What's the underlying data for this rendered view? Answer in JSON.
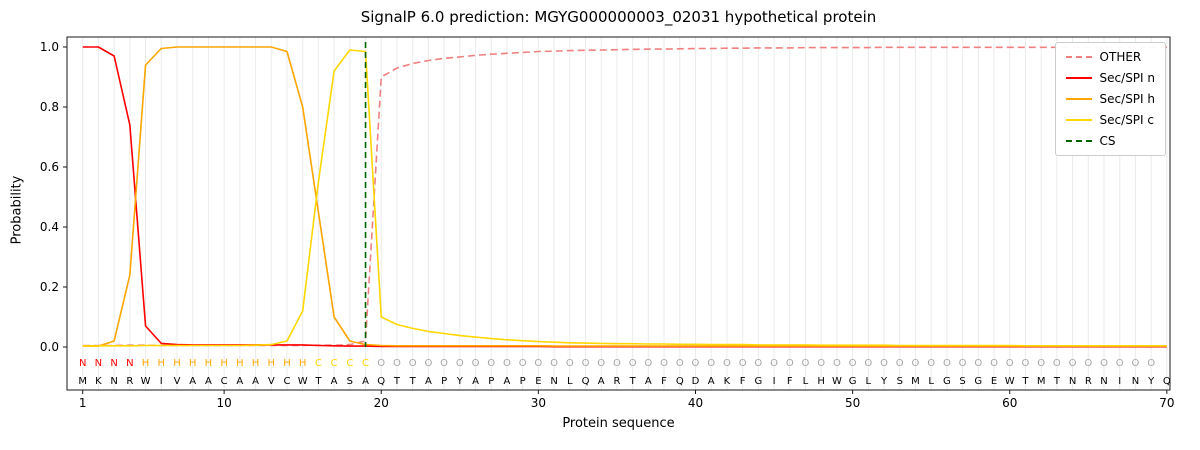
{
  "chart_data": {
    "type": "line",
    "title": "SignalP 6.0 prediction: MGYG000000003_02031 hypothetical protein",
    "xlabel": "Protein sequence",
    "ylabel": "Probability",
    "xlim": [
      0,
      70.2
    ],
    "ylim": [
      0,
      1
    ],
    "xticks": [
      1,
      10,
      20,
      30,
      40,
      50,
      60,
      70
    ],
    "yticks": [
      0.0,
      0.2,
      0.4,
      0.6,
      0.8,
      1.0
    ],
    "grid": "vertical-per-residue",
    "legend_position": "upper right",
    "sequence": "MKNRWIVAACAAVCWTASAQTTAPYAPAPENLQARTAFQDAKFGIFLHWGLYSMLGSGEWTMTNRNINYQ",
    "region_labels": "NNNNHHHHHHHHHHHCCCCOOOOOOOOOOOOOOOOOOOOOOOOOOOOOOOOOOOOOOOOOOOOOOOOOO",
    "region_colors": {
      "N": "#ff0000",
      "H": "#ffa500",
      "C": "#ffd700",
      "O": "#a6a6a6"
    },
    "series": [
      {
        "name": "OTHER",
        "color": "#f08080",
        "dash": "7,4",
        "values": [
          0.005,
          0.005,
          0.005,
          0.006,
          0.006,
          0.005,
          0.005,
          0.005,
          0.005,
          0.005,
          0.005,
          0.005,
          0.005,
          0.005,
          0.005,
          0.006,
          0.006,
          0.008,
          0.02,
          0.9,
          0.93,
          0.945,
          0.955,
          0.962,
          0.967,
          0.972,
          0.976,
          0.979,
          0.982,
          0.985,
          0.986,
          0.988,
          0.989,
          0.99,
          0.991,
          0.992,
          0.993,
          0.993,
          0.994,
          0.995,
          0.995,
          0.996,
          0.996,
          0.997,
          0.997,
          0.997,
          0.998,
          0.998,
          0.998,
          0.998,
          0.998,
          0.999,
          0.999,
          0.999,
          0.999,
          0.999,
          0.999,
          0.999,
          0.999,
          0.999,
          0.999,
          0.999,
          0.999,
          0.999,
          0.999,
          0.999,
          0.999,
          0.999,
          0.999,
          0.999
        ]
      },
      {
        "name": "Sec/SPI n",
        "color": "#ff0000",
        "dash": null,
        "values": [
          1.0,
          1.0,
          0.97,
          0.74,
          0.07,
          0.012,
          0.008,
          0.007,
          0.007,
          0.007,
          0.007,
          0.007,
          0.007,
          0.007,
          0.007,
          0.005,
          0.004,
          0.003,
          0.003,
          0.002,
          0.002,
          0.002,
          0.002,
          0.002,
          0.002,
          0.002,
          0.002,
          0.002,
          0.002,
          0.002,
          0.001,
          0.001,
          0.001,
          0.001,
          0.001,
          0.001,
          0.001,
          0.001,
          0.001,
          0.001,
          0.001,
          0.001,
          0.001,
          0.001,
          0.001,
          0.001,
          0.001,
          0.001,
          0.001,
          0.001,
          0.001,
          0.001,
          0.001,
          0.001,
          0.001,
          0.001,
          0.001,
          0.001,
          0.001,
          0.001,
          0.001,
          0.001,
          0.001,
          0.001,
          0.001,
          0.001,
          0.001,
          0.001,
          0.001,
          0.001
        ]
      },
      {
        "name": "Sec/SPI h",
        "color": "#ffa500",
        "dash": null,
        "values": [
          0.003,
          0.003,
          0.02,
          0.24,
          0.94,
          0.995,
          1.0,
          1.0,
          1.0,
          1.0,
          1.0,
          1.0,
          1.0,
          0.985,
          0.8,
          0.45,
          0.1,
          0.02,
          0.008,
          0.005,
          0.004,
          0.004,
          0.004,
          0.004,
          0.004,
          0.004,
          0.004,
          0.004,
          0.004,
          0.004,
          0.003,
          0.003,
          0.003,
          0.003,
          0.003,
          0.003,
          0.003,
          0.003,
          0.003,
          0.003,
          0.003,
          0.003,
          0.003,
          0.003,
          0.003,
          0.003,
          0.003,
          0.003,
          0.003,
          0.003,
          0.003,
          0.003,
          0.003,
          0.003,
          0.003,
          0.003,
          0.003,
          0.003,
          0.003,
          0.003,
          0.003,
          0.003,
          0.003,
          0.003,
          0.003,
          0.003,
          0.003,
          0.003,
          0.003,
          0.003
        ]
      },
      {
        "name": "Sec/SPI c",
        "color": "#ffd700",
        "dash": null,
        "values": [
          0.004,
          0.004,
          0.004,
          0.004,
          0.005,
          0.005,
          0.005,
          0.005,
          0.005,
          0.005,
          0.005,
          0.006,
          0.008,
          0.02,
          0.12,
          0.55,
          0.92,
          0.99,
          0.985,
          0.1,
          0.075,
          0.062,
          0.052,
          0.045,
          0.038,
          0.033,
          0.028,
          0.024,
          0.021,
          0.018,
          0.016,
          0.014,
          0.013,
          0.012,
          0.011,
          0.011,
          0.01,
          0.01,
          0.009,
          0.009,
          0.008,
          0.008,
          0.008,
          0.007,
          0.007,
          0.007,
          0.007,
          0.006,
          0.006,
          0.006,
          0.006,
          0.006,
          0.005,
          0.005,
          0.005,
          0.005,
          0.005,
          0.005,
          0.005,
          0.005,
          0.004,
          0.004,
          0.004,
          0.004,
          0.004,
          0.004,
          0.004,
          0.004,
          0.004,
          0.004
        ]
      }
    ],
    "cs_line": {
      "name": "CS",
      "x": 19,
      "color": "#006400",
      "dash": "6,4"
    }
  }
}
